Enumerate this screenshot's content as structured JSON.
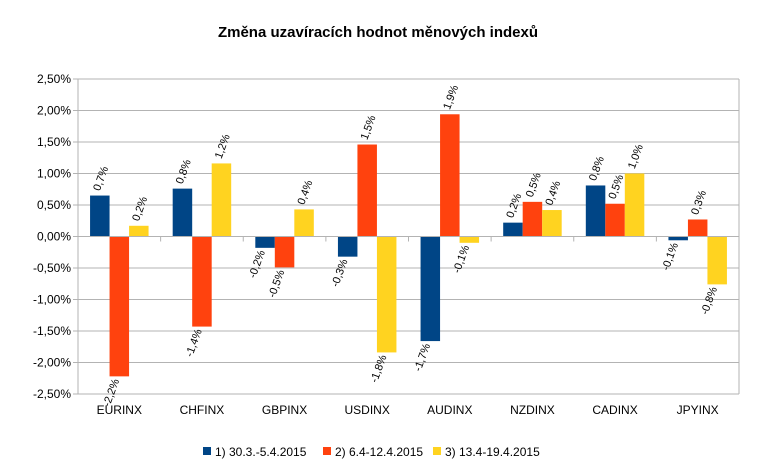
{
  "chart_data": {
    "type": "bar",
    "title": "Změna uzavíracích hodnot měnových indexů",
    "categories": [
      "EURINX",
      "CHFINX",
      "GBPINX",
      "USDINX",
      "AUDINX",
      "NZDINX",
      "CADINX",
      "JPYINX"
    ],
    "series": [
      {
        "name": "1) 30.3.-5.4.2015",
        "color": "#004586",
        "values": [
          0.65,
          0.76,
          -0.18,
          -0.32,
          -1.66,
          0.22,
          0.81,
          -0.06
        ],
        "labels": [
          "0,7%",
          "0,8%",
          "-0,2%",
          "-0,3%",
          "-1,7%",
          "0,2%",
          "0,8%",
          "-0,1%"
        ]
      },
      {
        "name": "2) 6.4-12.4.2015",
        "color": "#ff420e",
        "values": [
          -2.22,
          -1.43,
          -0.49,
          1.46,
          1.94,
          0.55,
          0.52,
          0.27
        ],
        "labels": [
          "-2,2%",
          "-1,4%",
          "-0,5%",
          "1,5%",
          "1,9%",
          "0,5%",
          "0,5%",
          "0,3%"
        ]
      },
      {
        "name": "3) 13.4-19.4.2015",
        "color": "#ffd320",
        "values": [
          0.17,
          1.16,
          0.43,
          -1.84,
          -0.1,
          0.42,
          1.0,
          -0.76
        ],
        "labels": [
          "0,2%",
          "1,2%",
          "0,4%",
          "-1,8%",
          "-0,1%",
          "0,4%",
          "1,0%",
          "-0,8%"
        ]
      }
    ],
    "y_ticks": [
      "2,50%",
      "2,00%",
      "1,50%",
      "1,00%",
      "0,50%",
      "0,00%",
      "-0,50%",
      "-1,00%",
      "-1,50%",
      "-2,00%",
      "-2,50%"
    ],
    "ylim": [
      -2.5,
      2.5
    ],
    "y_step": 0.5,
    "grid": true,
    "legend_position": "bottom",
    "axis_color": "#b3b3b3"
  }
}
